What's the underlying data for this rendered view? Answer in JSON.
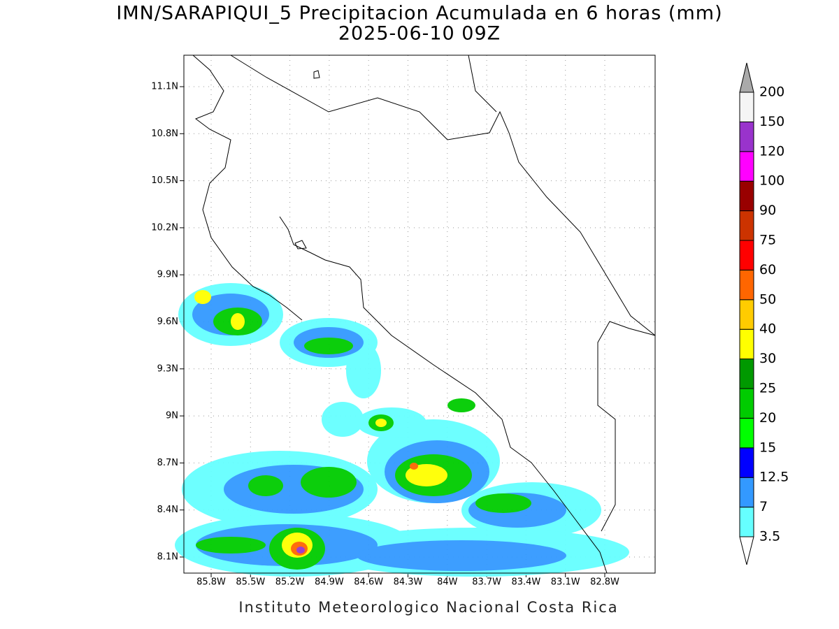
{
  "title": "IMN/SARAPIQUI_5 Precipitacion Acumulada en 6 horas (mm)",
  "subtitle": "2025-06-10 09Z",
  "map": {
    "lat_labels": [
      "11.1N",
      "10.8N",
      "10.5N",
      "10.2N",
      "9.9N",
      "9.6N",
      "9.3N",
      "9N",
      "8.7N",
      "8.4N",
      "8.1N"
    ],
    "lon_labels": [
      "85.8W",
      "85.5W",
      "85.2W",
      "84.9W",
      "84.6W",
      "84.3W",
      "84W",
      "83.7W",
      "83.4W",
      "83.1W",
      "82.8W"
    ]
  },
  "colorbar": {
    "labels": [
      "3.5",
      "7",
      "12.5",
      "15",
      "20",
      "25",
      "30",
      "40",
      "50",
      "60",
      "75",
      "90",
      "100",
      "120",
      "150",
      "200"
    ],
    "colors": [
      "#66ffff",
      "#3399ff",
      "#0000ff",
      "#00ff00",
      "#00cc00",
      "#009900",
      "#ffff00",
      "#ffcc00",
      "#ff6600",
      "#ff0000",
      "#cc3300",
      "#990000",
      "#ff00ff",
      "#9933cc",
      "#f5f5f5"
    ],
    "under_color": "#ffffff",
    "over_color": "#aaaaaa"
  },
  "footer": "Instituto Meteorologico Nacional Costa Rica"
}
